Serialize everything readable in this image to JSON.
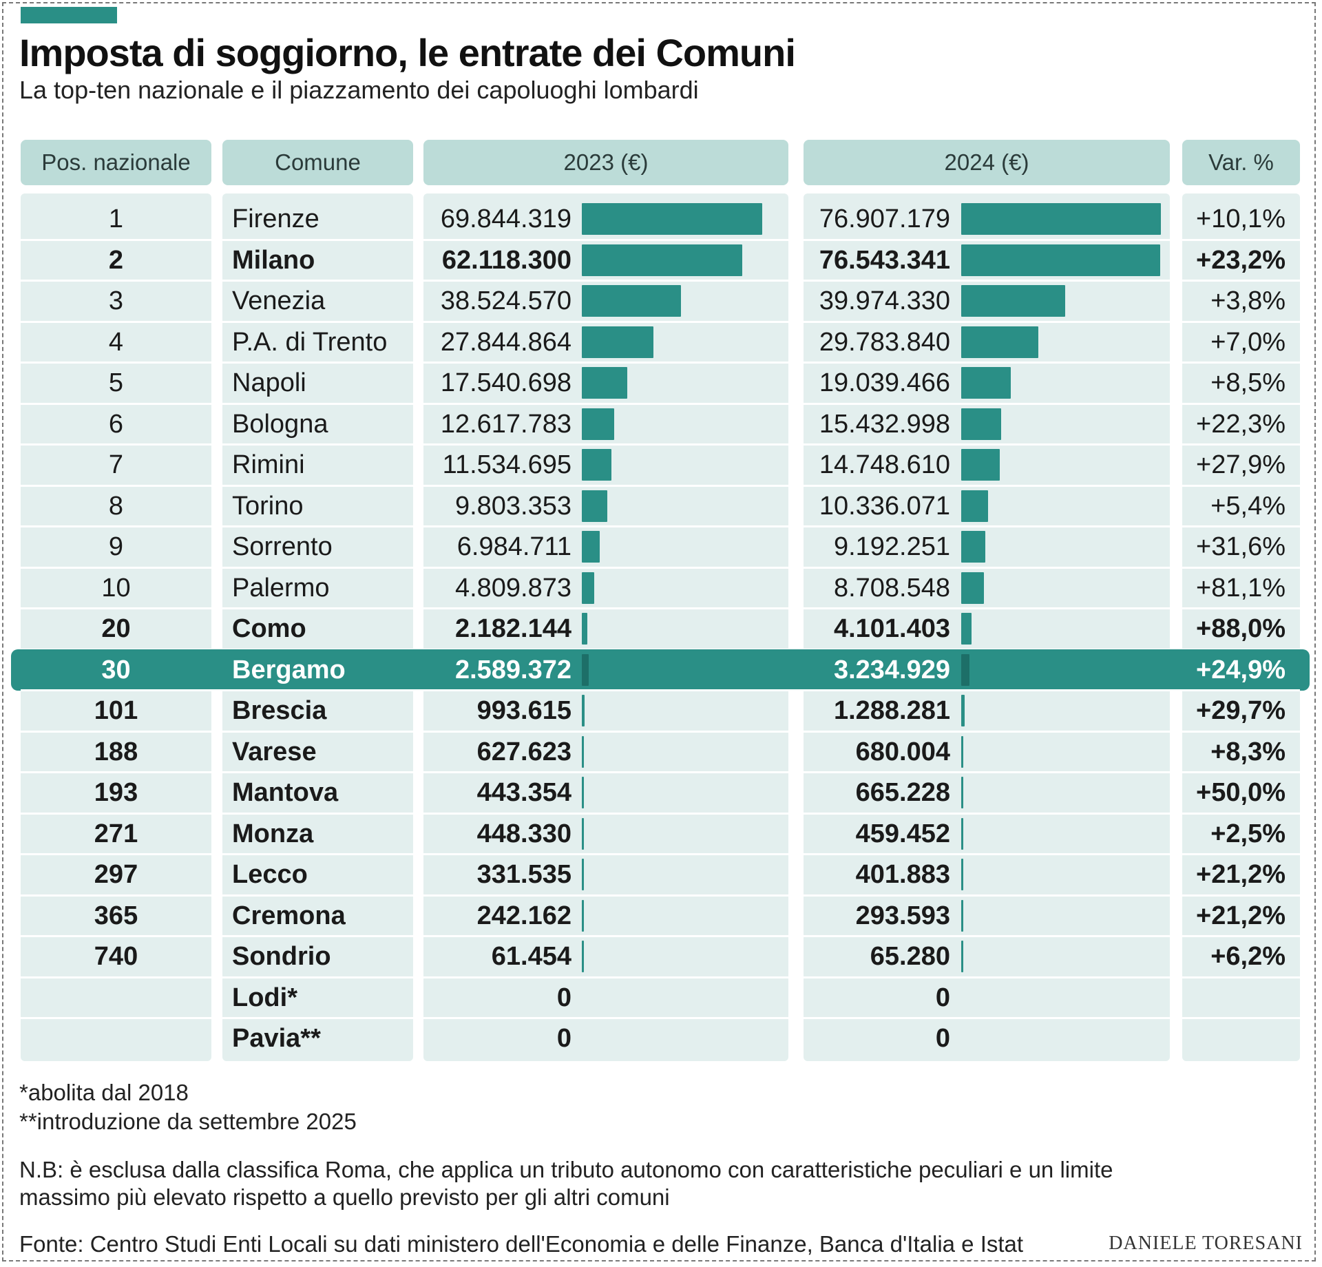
{
  "title": "Imposta di soggiorno, le entrate dei Comuni",
  "subtitle": "La top-ten nazionale e il piazzamento dei capoluoghi lombardi",
  "headers": {
    "pos": "Pos. nazionale",
    "comune": "Comune",
    "y2023": "2023 (€)",
    "y2024": "2024 (€)",
    "var": "Var. %"
  },
  "colors": {
    "accent": "#2a8f86",
    "header": "#bcdcd8",
    "column": "#e3efee"
  },
  "rows": [
    {
      "pos": "1",
      "comune": "Firenze",
      "v2023_label": "69.844.319",
      "v2024_label": "76.907.179",
      "var": "+10,1%",
      "bold": false,
      "highlight": false
    },
    {
      "pos": "2",
      "comune": "Milano",
      "v2023_label": "62.118.300",
      "v2024_label": "76.543.341",
      "var": "+23,2%",
      "bold": true,
      "highlight": false
    },
    {
      "pos": "3",
      "comune": "Venezia",
      "v2023_label": "38.524.570",
      "v2024_label": "39.974.330",
      "var": "+3,8%",
      "bold": false,
      "highlight": false
    },
    {
      "pos": "4",
      "comune": "P.A. di Trento",
      "v2023_label": "27.844.864",
      "v2024_label": "29.783.840",
      "var": "+7,0%",
      "bold": false,
      "highlight": false
    },
    {
      "pos": "5",
      "comune": "Napoli",
      "v2023_label": "17.540.698",
      "v2024_label": "19.039.466",
      "var": "+8,5%",
      "bold": false,
      "highlight": false
    },
    {
      "pos": "6",
      "comune": "Bologna",
      "v2023_label": "12.617.783",
      "v2024_label": "15.432.998",
      "var": "+22,3%",
      "bold": false,
      "highlight": false
    },
    {
      "pos": "7",
      "comune": "Rimini",
      "v2023_label": "11.534.695",
      "v2024_label": "14.748.610",
      "var": "+27,9%",
      "bold": false,
      "highlight": false
    },
    {
      "pos": "8",
      "comune": "Torino",
      "v2023_label": "9.803.353",
      "v2024_label": "10.336.071",
      "var": "+5,4%",
      "bold": false,
      "highlight": false
    },
    {
      "pos": "9",
      "comune": "Sorrento",
      "v2023_label": "6.984.711",
      "v2024_label": "9.192.251",
      "var": "+31,6%",
      "bold": false,
      "highlight": false
    },
    {
      "pos": "10",
      "comune": "Palermo",
      "v2023_label": "4.809.873",
      "v2024_label": "8.708.548",
      "var": "+81,1%",
      "bold": false,
      "highlight": false
    },
    {
      "pos": "20",
      "comune": "Como",
      "v2023_label": "2.182.144",
      "v2024_label": "4.101.403",
      "var": "+88,0%",
      "bold": true,
      "highlight": false
    },
    {
      "pos": "30",
      "comune": "Bergamo",
      "v2023_label": "2.589.372",
      "v2024_label": "3.234.929",
      "var": "+24,9%",
      "bold": true,
      "highlight": true
    },
    {
      "pos": "101",
      "comune": "Brescia",
      "v2023_label": "993.615",
      "v2024_label": "1.288.281",
      "var": "+29,7%",
      "bold": true,
      "highlight": false
    },
    {
      "pos": "188",
      "comune": "Varese",
      "v2023_label": "627.623",
      "v2024_label": "680.004",
      "var": "+8,3%",
      "bold": true,
      "highlight": false
    },
    {
      "pos": "193",
      "comune": "Mantova",
      "v2023_label": "443.354",
      "v2024_label": "665.228",
      "var": "+50,0%",
      "bold": true,
      "highlight": false
    },
    {
      "pos": "271",
      "comune": "Monza",
      "v2023_label": "448.330",
      "v2024_label": "459.452",
      "var": "+2,5%",
      "bold": true,
      "highlight": false
    },
    {
      "pos": "297",
      "comune": "Lecco",
      "v2023_label": "331.535",
      "v2024_label": "401.883",
      "var": "+21,2%",
      "bold": true,
      "highlight": false
    },
    {
      "pos": "365",
      "comune": "Cremona",
      "v2023_label": "242.162",
      "v2024_label": "293.593",
      "var": "+21,2%",
      "bold": true,
      "highlight": false
    },
    {
      "pos": "740",
      "comune": "Sondrio",
      "v2023_label": "61.454",
      "v2024_label": "65.280",
      "var": "+6,2%",
      "bold": true,
      "highlight": false
    },
    {
      "pos": "",
      "comune": "Lodi*",
      "v2023_label": "0",
      "v2024_label": "0",
      "var": "",
      "bold": true,
      "highlight": false
    },
    {
      "pos": "",
      "comune": "Pavia**",
      "v2023_label": "0",
      "v2024_label": "0",
      "var": "",
      "bold": true,
      "highlight": false
    }
  ],
  "notes": {
    "n1": "*abolita dal 2018",
    "n2": "**introduzione da settembre 2025",
    "nb1": "N.B: è esclusa dalla classifica Roma, che applica un tributo autonomo con caratteristiche peculiari e un limite",
    "nb2": "massimo più elevato rispetto a quello previsto per gli altri comuni",
    "source": "Fonte: Centro Studi Enti Locali su dati ministero dell'Economia e delle Finanze, Banca d'Italia e Istat",
    "credit": "DANIELE TORESANI"
  },
  "chart_data": {
    "type": "table",
    "title": "Imposta di soggiorno, le entrate dei Comuni",
    "subtitle": "La top-ten nazionale e il piazzamento dei capoluoghi lombardi",
    "categories": [
      "Firenze",
      "Milano",
      "Venezia",
      "P.A. di Trento",
      "Napoli",
      "Bologna",
      "Rimini",
      "Torino",
      "Sorrento",
      "Palermo",
      "Como",
      "Bergamo",
      "Brescia",
      "Varese",
      "Mantova",
      "Monza",
      "Lecco",
      "Cremona",
      "Sondrio",
      "Lodi*",
      "Pavia**"
    ],
    "series": [
      {
        "name": "2023 (€)",
        "values": [
          69844319,
          62118300,
          38524570,
          27844864,
          17540698,
          12617783,
          11534695,
          9803353,
          6984711,
          4809873,
          2182144,
          2589372,
          993615,
          627623,
          443354,
          448330,
          331535,
          242162,
          61454,
          0,
          0
        ]
      },
      {
        "name": "2024 (€)",
        "values": [
          76907179,
          76543341,
          39974330,
          29783840,
          19039466,
          15432998,
          14748610,
          10336071,
          9192251,
          8708548,
          4101403,
          3234929,
          1288281,
          680004,
          665228,
          459452,
          401883,
          293593,
          65280,
          0,
          0
        ]
      }
    ],
    "bar_max": 76907179
  }
}
